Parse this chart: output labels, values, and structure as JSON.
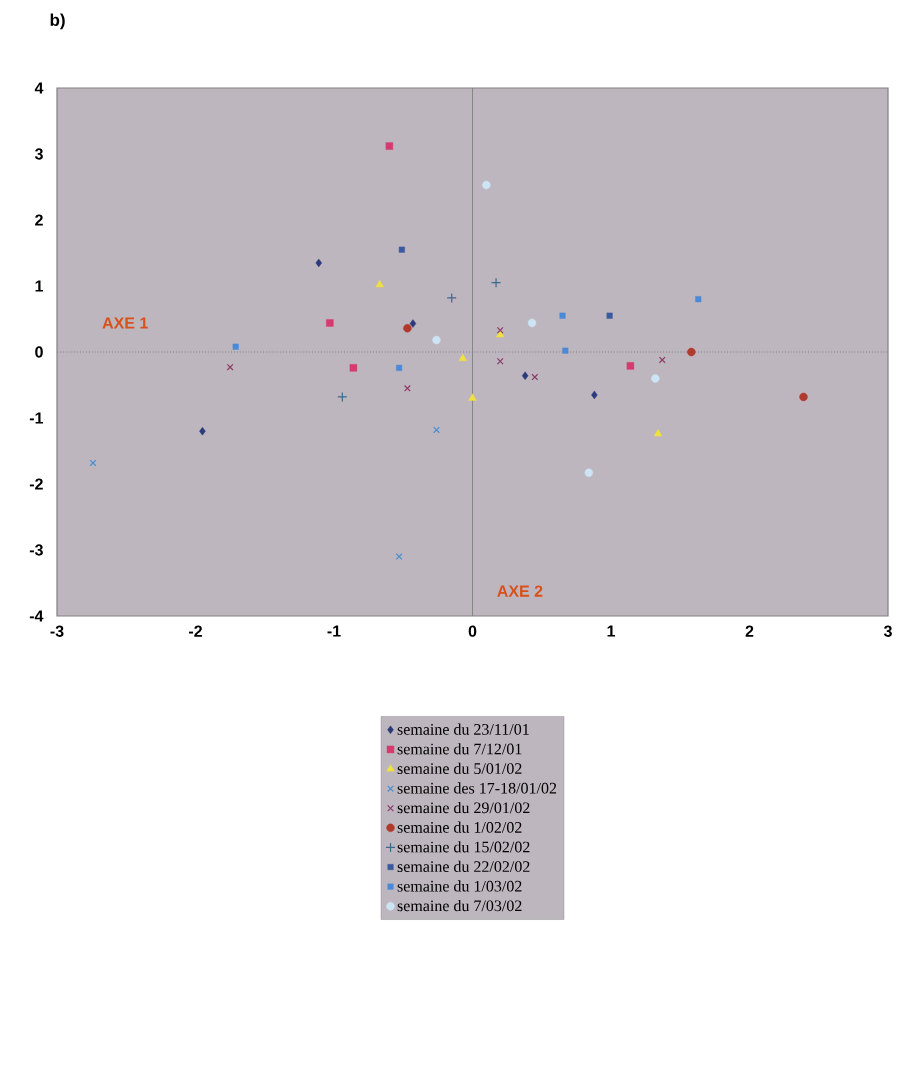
{
  "chart_data": {
    "type": "scatter",
    "title": "b)",
    "xlim": [
      -3,
      3
    ],
    "ylim": [
      -4,
      4
    ],
    "xticks": [
      -3,
      -2,
      -1,
      0,
      1,
      2,
      3
    ],
    "yticks": [
      -4,
      -3,
      -2,
      -1,
      0,
      1,
      2,
      3,
      4
    ],
    "grid": false,
    "legend": "bottom",
    "ref_lines": [
      {
        "axis": "x",
        "value": 0,
        "color": "#808080",
        "line_style": "solid"
      },
      {
        "axis": "y",
        "value": 0,
        "color": "#707070",
        "line_style": "dotted"
      }
    ],
    "annotations": [
      "AXE 1",
      "AXE 2"
    ],
    "series": [
      {
        "name": "semaine du 23/11/01",
        "color": "#2b3a7a",
        "marker": "diamond",
        "x": [
          -1.11,
          -1.95,
          0.38,
          0.88,
          -0.43
        ],
        "values": [
          1.35,
          -1.2,
          -0.36,
          -0.65,
          0.43
        ]
      },
      {
        "name": "semaine du 7/12/01",
        "color": "#d63a6e",
        "marker": "square",
        "x": [
          -0.6,
          -1.03,
          -0.86,
          1.14
        ],
        "values": [
          3.12,
          0.44,
          -0.24,
          -0.21
        ]
      },
      {
        "name": "semaine du 5/01/02",
        "color": "#f0e040",
        "marker": "triangle",
        "x": [
          -0.67,
          -0.07,
          0.0,
          1.34,
          0.2
        ],
        "values": [
          1.02,
          -0.1,
          -0.7,
          -1.24,
          0.26
        ]
      },
      {
        "name": "semaine des 17-18/01/02",
        "color": "#4a8fd0",
        "marker": "cross",
        "x": [
          -2.74,
          -0.26,
          -0.53
        ],
        "values": [
          -1.68,
          -1.18,
          -3.1
        ]
      },
      {
        "name": "semaine du 29/01/02",
        "color": "#8b3a6a",
        "marker": "cross",
        "x": [
          -1.75,
          -0.47,
          0.2,
          1.37,
          0.45,
          0.2
        ],
        "values": [
          -0.23,
          -0.55,
          -0.14,
          -0.12,
          -0.38,
          0.33
        ]
      },
      {
        "name": "semaine du 1/02/02",
        "color": "#b03a2e",
        "marker": "circle",
        "x": [
          1.58,
          2.39,
          -0.47
        ],
        "values": [
          0.0,
          -0.68,
          0.36
        ]
      },
      {
        "name": "semaine du 15/02/02",
        "color": "#3a6a90",
        "marker": "plus",
        "x": [
          -0.15,
          0.17,
          -0.94
        ],
        "values": [
          0.82,
          1.05,
          -0.68
        ]
      },
      {
        "name": "semaine du 22/02/02",
        "color": "#3a5aa0",
        "marker": "square",
        "x": [
          -0.51,
          0.99
        ],
        "values": [
          1.55,
          0.55
        ]
      },
      {
        "name": "semaine du 1/03/02",
        "color": "#4a8ad8",
        "marker": "square",
        "x": [
          -1.71,
          -0.53,
          0.67,
          0.65,
          1.63
        ],
        "values": [
          0.08,
          -0.24,
          0.02,
          0.55,
          0.8
        ]
      },
      {
        "name": "semaine du 7/03/02",
        "color": "#cce4f4",
        "marker": "circle",
        "x": [
          0.1,
          -0.26,
          0.43,
          1.32,
          0.84
        ],
        "values": [
          2.53,
          0.18,
          0.44,
          -0.4,
          -1.83
        ]
      }
    ]
  }
}
